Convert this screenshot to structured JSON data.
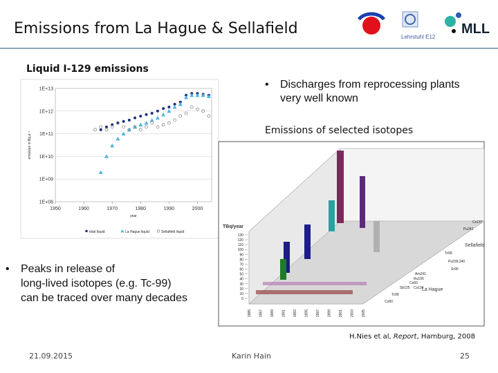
{
  "header": {
    "title": "Emissions from La Hague & Sellafield",
    "logo_text": "Lehrstuhl E12",
    "logo_mll": "MLL"
  },
  "left_heading": "Liquid I-129 emissions",
  "bullets_right": [
    "Discharges from reprocessing plants",
    "very well known"
  ],
  "right_heading": "Emissions of selected isotopes",
  "bullets_left": [
    "Peaks in release of",
    "long-lived isotopes (e.g. Tc-99)",
    "can be traced over many decades"
  ],
  "chart_data": {
    "type": "scatter",
    "ylabel": "emission in Bq a⁻¹",
    "xlabel": "year",
    "log_y": true,
    "xlim": [
      1950,
      2005
    ],
    "xticks": [
      1950,
      1960,
      1970,
      1980,
      1990,
      2000
    ],
    "ylim": [
      100000000,
      10000000000000
    ],
    "yticks": [
      {
        "value": 100000000,
        "label": "1E+08"
      },
      {
        "value": 1000000000,
        "label": "1E+09"
      },
      {
        "value": 10000000000,
        "label": "1E+10"
      },
      {
        "value": 100000000000,
        "label": "1E+11"
      },
      {
        "value": 1000000000000,
        "label": "1E+12"
      },
      {
        "value": 10000000000000,
        "label": "1E+13"
      }
    ],
    "series": [
      {
        "name": "total liquid",
        "color": "#1f2f7a",
        "marker": "dot",
        "x": [
          1966,
          1968,
          1970,
          1972,
          1974,
          1976,
          1978,
          1980,
          1982,
          1984,
          1986,
          1988,
          1990,
          1992,
          1994,
          1996,
          1998,
          2000,
          2002,
          2004
        ],
        "values": [
          150000000000,
          200000000000,
          250000000000,
          300000000000,
          350000000000,
          400000000000,
          500000000000,
          600000000000,
          700000000000,
          800000000000,
          1000000000000,
          1300000000000,
          1500000000000,
          2000000000000,
          2500000000000,
          5000000000000,
          6000000000000,
          6000000000000,
          5500000000000,
          5000000000000
        ]
      },
      {
        "name": "La Hague liquid",
        "color": "#4fb3e0",
        "marker": "triangle",
        "x": [
          1966,
          1968,
          1970,
          1972,
          1974,
          1976,
          1978,
          1980,
          1982,
          1984,
          1986,
          1988,
          1990,
          1992,
          1994,
          1996,
          1998,
          2000,
          2002,
          2004
        ],
        "values": [
          2000000000,
          10000000000,
          30000000000,
          60000000000,
          100000000000,
          150000000000,
          200000000000,
          250000000000,
          300000000000,
          400000000000,
          500000000000,
          700000000000,
          1000000000000,
          1500000000000,
          2000000000000,
          4000000000000,
          5000000000000,
          5000000000000,
          5000000000000,
          4500000000000
        ]
      },
      {
        "name": "Sellafield liquid",
        "color": "#8a8a8a",
        "marker": "circle",
        "x": [
          1964,
          1966,
          1968,
          1970,
          1972,
          1974,
          1976,
          1978,
          1980,
          1982,
          1984,
          1986,
          1988,
          1990,
          1992,
          1994,
          1996,
          1998,
          2000,
          2002,
          2004
        ],
        "values": [
          150000000000,
          200000000000,
          150000000000,
          200000000000,
          300000000000,
          200000000000,
          150000000000,
          200000000000,
          150000000000,
          200000000000,
          300000000000,
          200000000000,
          250000000000,
          300000000000,
          400000000000,
          600000000000,
          800000000000,
          1500000000000,
          1200000000000,
          1000000000000,
          600000000000
        ]
      }
    ]
  },
  "isotope_chart": {
    "ylabel": "TBq/year",
    "yticks": [
      0,
      10,
      20,
      30,
      40,
      50,
      60,
      70,
      80,
      90,
      100,
      110,
      120,
      130
    ],
    "years": [
      "1985",
      "1987",
      "1989",
      "1991",
      "1993",
      "1995",
      "1997",
      "1999",
      "2001",
      "2003",
      "2005"
    ],
    "isotopes": [
      "Cs137",
      "Pu241",
      "Sellafield",
      "Tc99",
      "Pu239,240",
      "Sr90",
      "Am241",
      "Ru106",
      "Co60",
      "Cs134",
      "Sb125",
      "La Hague",
      "Tc99",
      "Co60"
    ]
  },
  "citation": {
    "before": "H.Nies et al, ",
    "italic": "Report",
    "after": ", Hamburg, 2008"
  },
  "footer": {
    "date": "21.09.2015",
    "author": "Karin Hain",
    "page": "25"
  }
}
